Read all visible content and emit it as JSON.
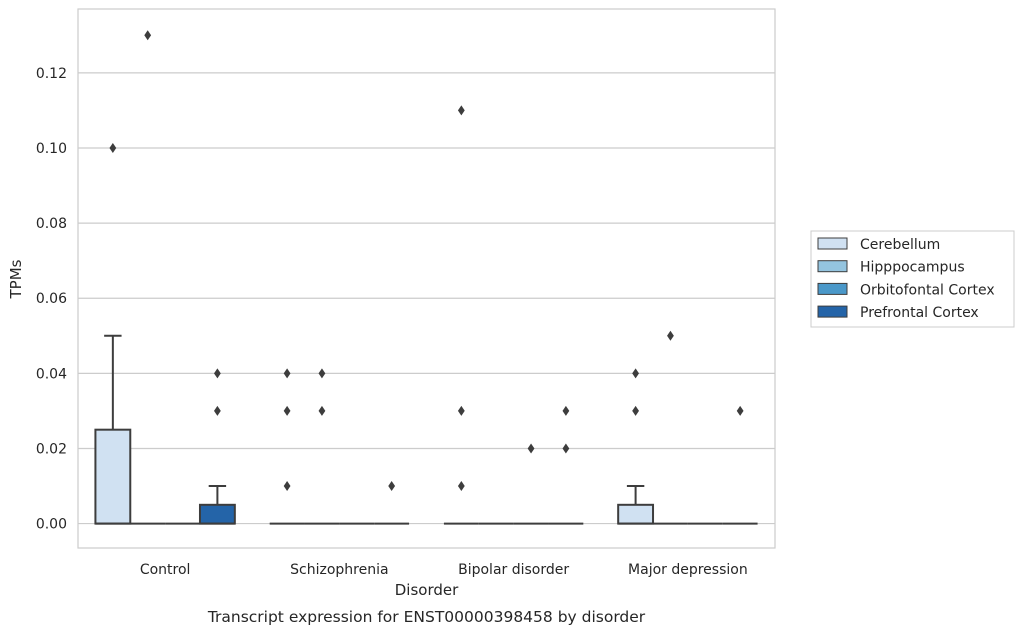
{
  "chart_data": {
    "type": "box",
    "title": "",
    "caption": "Transcript expression for ENST00000398458 by disorder",
    "xlabel": "Disorder",
    "ylabel": "TPMs",
    "ylim": [
      -0.0065,
      0.137
    ],
    "yticks": [
      0.0,
      0.02,
      0.04,
      0.06,
      0.08,
      0.1,
      0.12
    ],
    "ytick_labels": [
      "0.00",
      "0.02",
      "0.04",
      "0.06",
      "0.08",
      "0.10",
      "0.12"
    ],
    "categories": [
      "Control",
      "Schizophrenia",
      "Bipolar disorder",
      "Major depression"
    ],
    "grid": "horizontal",
    "legend_position": "right",
    "series": [
      {
        "name": "Cerebellum",
        "color": "#d0e1f2",
        "boxes": [
          {
            "q1": 0.0,
            "median": 0.0,
            "q3": 0.025,
            "whisker_low": 0.0,
            "whisker_high": 0.05,
            "outliers": [
              0.1
            ]
          },
          {
            "q1": 0.0,
            "median": 0.0,
            "q3": 0.0,
            "whisker_low": 0.0,
            "whisker_high": 0.0,
            "outliers": [
              0.01,
              0.03,
              0.04
            ]
          },
          {
            "q1": 0.0,
            "median": 0.0,
            "q3": 0.0,
            "whisker_low": 0.0,
            "whisker_high": 0.0,
            "outliers": [
              0.01,
              0.03,
              0.11
            ]
          },
          {
            "q1": 0.0,
            "median": 0.0,
            "q3": 0.005,
            "whisker_low": 0.0,
            "whisker_high": 0.01,
            "outliers": [
              0.03,
              0.04
            ]
          }
        ]
      },
      {
        "name": "Hipppocampus",
        "color": "#94c4df",
        "boxes": [
          {
            "q1": 0.0,
            "median": 0.0,
            "q3": 0.0,
            "whisker_low": 0.0,
            "whisker_high": 0.0,
            "outliers": [
              0.13
            ]
          },
          {
            "q1": 0.0,
            "median": 0.0,
            "q3": 0.0,
            "whisker_low": 0.0,
            "whisker_high": 0.0,
            "outliers": [
              0.03,
              0.04
            ]
          },
          {
            "q1": 0.0,
            "median": 0.0,
            "q3": 0.0,
            "whisker_low": 0.0,
            "whisker_high": 0.0,
            "outliers": []
          },
          {
            "q1": 0.0,
            "median": 0.0,
            "q3": 0.0,
            "whisker_low": 0.0,
            "whisker_high": 0.0,
            "outliers": [
              0.05
            ]
          }
        ]
      },
      {
        "name": "Orbitofontal Cortex",
        "color": "#4a98c9",
        "boxes": [
          {
            "q1": 0.0,
            "median": 0.0,
            "q3": 0.0,
            "whisker_low": 0.0,
            "whisker_high": 0.0,
            "outliers": []
          },
          {
            "q1": 0.0,
            "median": 0.0,
            "q3": 0.0,
            "whisker_low": 0.0,
            "whisker_high": 0.0,
            "outliers": []
          },
          {
            "q1": 0.0,
            "median": 0.0,
            "q3": 0.0,
            "whisker_low": 0.0,
            "whisker_high": 0.0,
            "outliers": [
              0.02
            ]
          },
          {
            "q1": 0.0,
            "median": 0.0,
            "q3": 0.0,
            "whisker_low": 0.0,
            "whisker_high": 0.0,
            "outliers": []
          }
        ]
      },
      {
        "name": "Prefrontal Cortex",
        "color": "#2464a8",
        "boxes": [
          {
            "q1": 0.0,
            "median": 0.0,
            "q3": 0.005,
            "whisker_low": 0.0,
            "whisker_high": 0.01,
            "outliers": [
              0.03,
              0.04
            ]
          },
          {
            "q1": 0.0,
            "median": 0.0,
            "q3": 0.0,
            "whisker_low": 0.0,
            "whisker_high": 0.0,
            "outliers": [
              0.01
            ]
          },
          {
            "q1": 0.0,
            "median": 0.0,
            "q3": 0.0,
            "whisker_low": 0.0,
            "whisker_high": 0.0,
            "outliers": [
              0.02,
              0.03
            ]
          },
          {
            "q1": 0.0,
            "median": 0.0,
            "q3": 0.0,
            "whisker_low": 0.0,
            "whisker_high": 0.0,
            "outliers": [
              0.03
            ]
          }
        ]
      }
    ]
  }
}
